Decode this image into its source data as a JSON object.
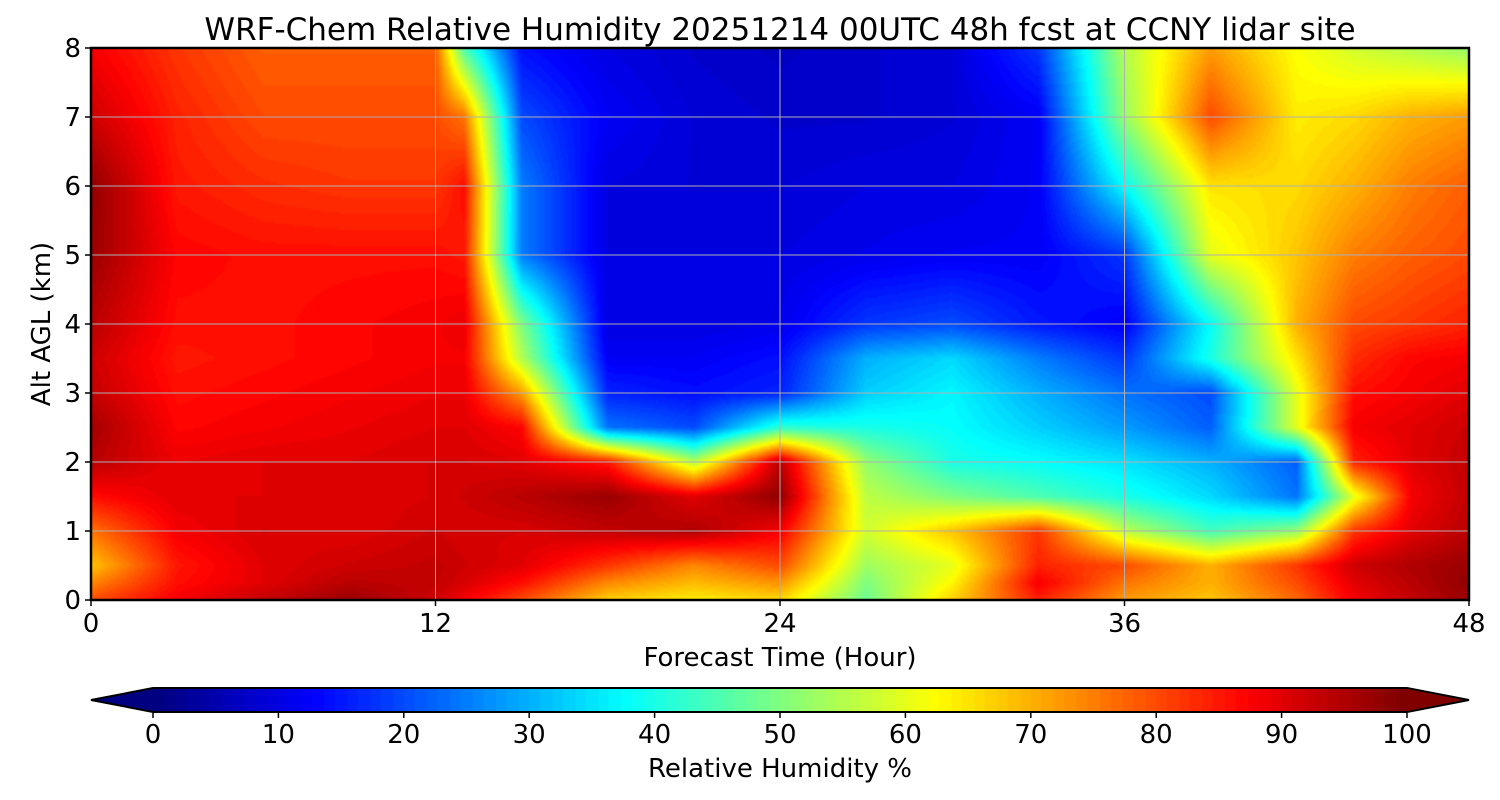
{
  "chart_data": {
    "type": "heatmap",
    "title": "WRF-Chem Relative Humidity 20251214 00UTC 48h fcst at CCNY lidar site",
    "xlabel": "Forecast Time (Hour)",
    "ylabel": "Alt AGL (km)",
    "xlim": [
      0,
      48
    ],
    "ylim": [
      0,
      8
    ],
    "xticks": [
      0,
      12,
      24,
      36,
      48
    ],
    "yticks": [
      0,
      1,
      2,
      3,
      4,
      5,
      6,
      7,
      8
    ],
    "grid": true,
    "colorbar": {
      "label": "Relative Humidity %",
      "range": [
        0,
        100
      ],
      "ticks": [
        0,
        10,
        20,
        30,
        40,
        50,
        60,
        70,
        80,
        90,
        100
      ],
      "colormap": "jet",
      "extend": "both"
    },
    "x": [
      0,
      3,
      6,
      9,
      12,
      13,
      15,
      18,
      21,
      24,
      27,
      30,
      33,
      36,
      39,
      42,
      44,
      46,
      48
    ],
    "y": [
      0,
      0.25,
      0.5,
      1,
      1.5,
      2,
      2.5,
      3,
      3.5,
      4,
      5,
      6,
      7,
      8
    ],
    "z": [
      [
        80,
        88,
        93,
        97,
        92,
        88,
        80,
        67,
        64,
        66,
        48,
        67,
        84,
        72,
        68,
        77,
        88,
        93,
        97
      ],
      [
        74,
        86,
        90,
        94,
        93,
        91,
        86,
        74,
        69,
        73,
        50,
        63,
        88,
        76,
        70,
        80,
        90,
        94,
        98
      ],
      [
        68,
        85,
        90,
        92,
        93,
        92,
        90,
        82,
        74,
        80,
        53,
        60,
        84,
        80,
        70,
        82,
        92,
        95,
        97
      ],
      [
        76,
        88,
        91,
        90,
        92,
        91,
        91,
        93,
        95,
        88,
        58,
        68,
        82,
        56,
        44,
        52,
        82,
        90,
        94
      ],
      [
        86,
        90,
        90,
        90,
        91,
        92,
        94,
        97,
        90,
        98,
        56,
        50,
        45,
        40,
        34,
        24,
        60,
        88,
        93
      ],
      [
        94,
        89,
        90,
        90,
        91,
        91,
        90,
        85,
        55,
        94,
        52,
        40,
        38,
        35,
        30,
        22,
        84,
        90,
        93
      ],
      [
        96,
        87,
        88,
        89,
        90,
        90,
        87,
        24,
        20,
        42,
        40,
        38,
        33,
        28,
        22,
        60,
        88,
        90,
        92
      ],
      [
        93,
        86,
        87,
        88,
        89,
        89,
        72,
        16,
        14,
        16,
        33,
        37,
        30,
        24,
        20,
        60,
        86,
        88,
        90
      ],
      [
        92,
        85,
        86,
        87,
        88,
        88,
        55,
        12,
        12,
        14,
        30,
        34,
        25,
        18,
        40,
        65,
        83,
        87,
        88
      ],
      [
        94,
        86,
        86,
        87,
        88,
        89,
        50,
        10,
        10,
        11,
        18,
        20,
        15,
        12,
        38,
        70,
        80,
        82,
        84
      ],
      [
        97,
        87,
        86,
        86,
        86,
        85,
        25,
        10,
        10,
        10,
        11,
        12,
        12,
        18,
        60,
        68,
        75,
        78,
        80
      ],
      [
        98,
        85,
        83,
        82,
        82,
        86,
        25,
        10,
        9,
        9,
        10,
        10,
        12,
        38,
        65,
        66,
        70,
        75,
        78
      ],
      [
        92,
        84,
        80,
        80,
        80,
        76,
        20,
        12,
        9,
        8,
        8,
        9,
        12,
        52,
        80,
        64,
        66,
        70,
        72
      ],
      [
        88,
        82,
        78,
        78,
        78,
        45,
        14,
        10,
        8,
        7,
        8,
        9,
        18,
        55,
        72,
        62,
        58,
        55,
        52
      ]
    ]
  }
}
